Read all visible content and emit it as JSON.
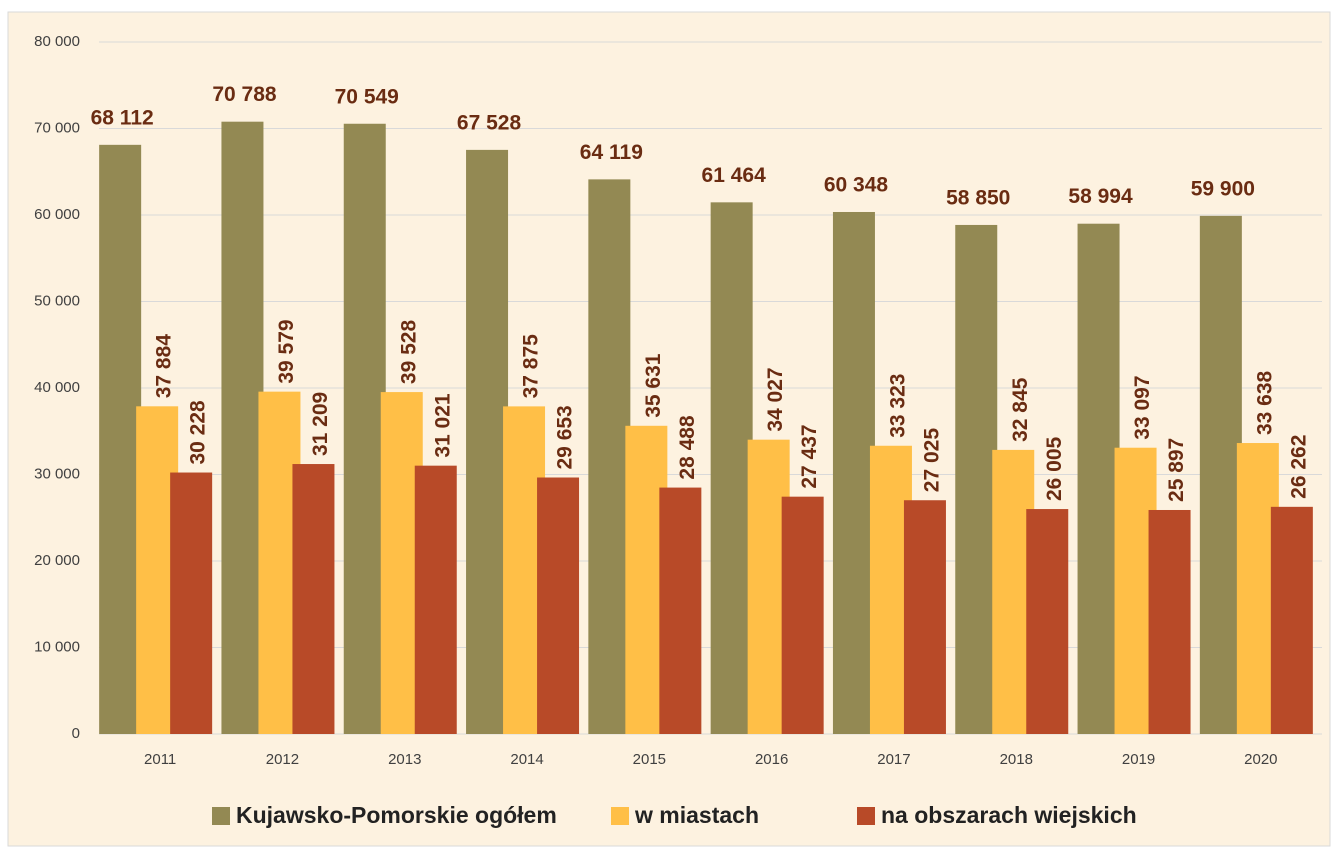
{
  "chart_data": {
    "type": "bar",
    "categories": [
      "2011",
      "2012",
      "2013",
      "2014",
      "2015",
      "2016",
      "2017",
      "2018",
      "2019",
      "2020"
    ],
    "series": [
      {
        "name": "Kujawsko-Pomorskie ogółem",
        "color": "#938953",
        "values": [
          68112,
          70788,
          70549,
          67528,
          64119,
          61464,
          60348,
          58850,
          58994,
          59900
        ],
        "value_labels": [
          "68 112",
          "70 788",
          "70 549",
          "67 528",
          "64 119",
          "61 464",
          "60 348",
          "58 850",
          "58 994",
          "59 900"
        ]
      },
      {
        "name": "w miastach",
        "color": "#ffbf47",
        "values": [
          37884,
          39579,
          39528,
          37875,
          35631,
          34027,
          33323,
          32845,
          33097,
          33638
        ],
        "value_labels": [
          "37 884",
          "39 579",
          "39 528",
          "37 875",
          "35 631",
          "34 027",
          "33 323",
          "32 845",
          "33 097",
          "33 638"
        ]
      },
      {
        "name": "na obszarach wiejskich",
        "color": "#b84a28",
        "values": [
          30228,
          31209,
          31021,
          29653,
          28488,
          27437,
          27025,
          26005,
          25897,
          26262
        ],
        "value_labels": [
          "30 228",
          "31 209",
          "31 021",
          "29 653",
          "28 488",
          "27 437",
          "27 025",
          "26 005",
          "25 897",
          "26 262"
        ]
      }
    ],
    "ylim": [
      0,
      80000
    ],
    "yticks": [
      0,
      {
        "value": 10000,
        "label": "10 000"
      },
      {
        "value": 20000,
        "label": "20 000"
      },
      {
        "value": 30000,
        "label": "30 000"
      },
      {
        "value": 40000,
        "label": "40 000"
      },
      {
        "value": 50000,
        "label": "50 000"
      },
      {
        "value": 60000,
        "label": "60 000"
      },
      {
        "value": 70000,
        "label": "70 000"
      },
      {
        "value": 80000,
        "label": "80 000"
      }
    ],
    "grid": true,
    "legend": "bottom"
  }
}
